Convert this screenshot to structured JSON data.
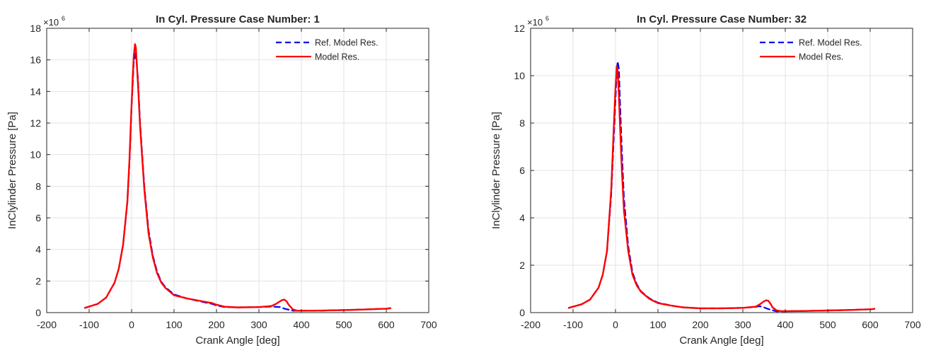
{
  "chart_data": [
    {
      "type": "line",
      "title": "In Cyl. Pressure Case Number: 1",
      "xlabel": "Crank Angle [deg]",
      "ylabel": "InClylinder Pressure [Pa]",
      "xlim": [
        -200,
        700
      ],
      "ylim": [
        0,
        18
      ],
      "y_multiplier": "×10",
      "y_multiplier_exp": "6",
      "xticks": [
        "-200",
        "-100",
        "0",
        "100",
        "200",
        "300",
        "400",
        "500",
        "600",
        "700"
      ],
      "yticks": [
        "0",
        "2",
        "4",
        "6",
        "8",
        "10",
        "12",
        "14",
        "16",
        "18"
      ],
      "grid": true,
      "legend_position": "top-right",
      "series": [
        {
          "name": "Ref. Model Res.",
          "color": "#0000ff",
          "style": "dashed",
          "x": [
            -110,
            -80,
            -60,
            -40,
            -30,
            -20,
            -10,
            -5,
            0,
            5,
            10,
            15,
            20,
            30,
            40,
            50,
            60,
            70,
            80,
            100,
            130,
            160,
            190,
            200,
            220,
            250,
            300,
            330,
            350,
            360,
            380,
            400,
            450,
            500,
            550,
            600,
            610
          ],
          "y": [
            0.3,
            0.55,
            0.95,
            1.9,
            2.8,
            4.3,
            7.0,
            9.5,
            13.0,
            15.8,
            16.5,
            14.8,
            12.0,
            8.0,
            5.2,
            3.6,
            2.6,
            1.95,
            1.6,
            1.15,
            0.9,
            0.72,
            0.55,
            0.45,
            0.35,
            0.33,
            0.35,
            0.38,
            0.35,
            0.25,
            0.12,
            0.12,
            0.13,
            0.16,
            0.2,
            0.25,
            0.28
          ]
        },
        {
          "name": "Model Res.",
          "color": "#ff0000",
          "style": "solid",
          "x": [
            -110,
            -80,
            -60,
            -40,
            -30,
            -20,
            -10,
            -5,
            0,
            5,
            8,
            10,
            15,
            20,
            30,
            40,
            50,
            60,
            70,
            80,
            100,
            130,
            160,
            190,
            200,
            220,
            250,
            300,
            330,
            340,
            350,
            355,
            360,
            365,
            370,
            380,
            390,
            400,
            450,
            500,
            550,
            600,
            610
          ],
          "y": [
            0.3,
            0.55,
            0.95,
            1.9,
            2.8,
            4.3,
            7.0,
            9.7,
            13.2,
            16.2,
            17.0,
            16.8,
            14.5,
            11.8,
            7.8,
            5.0,
            3.5,
            2.5,
            1.9,
            1.55,
            1.1,
            0.9,
            0.75,
            0.6,
            0.5,
            0.37,
            0.33,
            0.35,
            0.42,
            0.55,
            0.72,
            0.8,
            0.82,
            0.72,
            0.5,
            0.2,
            0.12,
            0.12,
            0.13,
            0.16,
            0.2,
            0.25,
            0.28
          ]
        }
      ]
    },
    {
      "type": "line",
      "title": "In Cyl. Pressure Case Number: 32",
      "xlabel": "Crank Angle [deg]",
      "ylabel": "InClylinder Pressure [Pa]",
      "xlim": [
        -200,
        700
      ],
      "ylim": [
        0,
        12
      ],
      "y_multiplier": "×10",
      "y_multiplier_exp": "6",
      "xticks": [
        "-200",
        "-100",
        "0",
        "100",
        "200",
        "300",
        "400",
        "500",
        "600",
        "700"
      ],
      "yticks": [
        "0",
        "2",
        "4",
        "6",
        "8",
        "10",
        "12"
      ],
      "grid": true,
      "legend_position": "top-right",
      "series": [
        {
          "name": "Ref. Model Res.",
          "color": "#0000ff",
          "style": "dashed",
          "x": [
            -110,
            -80,
            -60,
            -40,
            -30,
            -20,
            -10,
            -5,
            0,
            3,
            5,
            8,
            10,
            15,
            20,
            30,
            40,
            50,
            60,
            80,
            100,
            130,
            160,
            200,
            250,
            300,
            330,
            340,
            350,
            360,
            380,
            390,
            400,
            450,
            500,
            550,
            600,
            610
          ],
          "y": [
            0.2,
            0.35,
            0.55,
            1.05,
            1.6,
            2.6,
            5.0,
            7.0,
            9.0,
            10.2,
            10.6,
            10.3,
            9.2,
            6.8,
            4.8,
            2.8,
            1.7,
            1.2,
            0.9,
            0.6,
            0.42,
            0.3,
            0.22,
            0.18,
            0.18,
            0.2,
            0.24,
            0.27,
            0.22,
            0.15,
            0.05,
            0.06,
            0.06,
            0.07,
            0.09,
            0.11,
            0.14,
            0.16
          ]
        },
        {
          "name": "Model Res.",
          "color": "#ff0000",
          "style": "solid",
          "x": [
            -110,
            -80,
            -60,
            -40,
            -30,
            -20,
            -10,
            -5,
            0,
            3,
            5,
            8,
            10,
            15,
            20,
            30,
            40,
            50,
            60,
            80,
            100,
            130,
            160,
            200,
            250,
            300,
            330,
            340,
            350,
            355,
            360,
            365,
            370,
            380,
            390,
            400,
            450,
            500,
            550,
            600,
            610
          ],
          "y": [
            0.2,
            0.35,
            0.55,
            1.05,
            1.6,
            2.6,
            5.2,
            7.4,
            9.5,
            10.4,
            10.2,
            9.2,
            8.2,
            6.0,
            4.3,
            2.6,
            1.6,
            1.15,
            0.88,
            0.58,
            0.4,
            0.3,
            0.22,
            0.18,
            0.18,
            0.2,
            0.25,
            0.35,
            0.48,
            0.52,
            0.5,
            0.38,
            0.22,
            0.09,
            0.06,
            0.06,
            0.07,
            0.09,
            0.11,
            0.14,
            0.16
          ]
        }
      ]
    }
  ]
}
